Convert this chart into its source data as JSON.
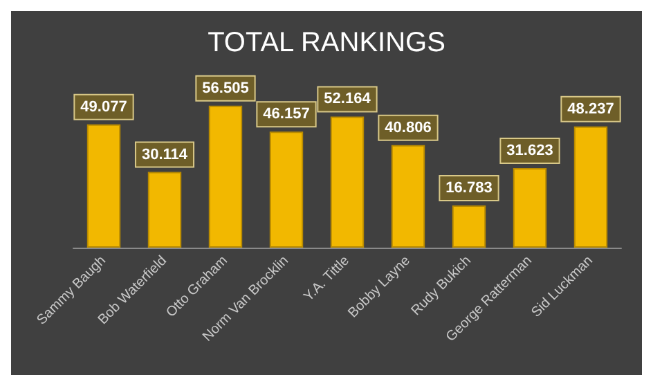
{
  "chart_data": {
    "type": "bar",
    "title": "TOTAL RANKINGS",
    "categories": [
      "Sammy Baugh",
      "Bob Waterfield",
      "Otto Graham",
      "Norm Van Brocklin",
      "Y.A. Tittle",
      "Bobby Layne",
      "Rudy Bukich",
      "George Ratterman",
      "Sid Luckman"
    ],
    "values": [
      49.077,
      30.114,
      56.505,
      46.157,
      52.164,
      40.806,
      16.783,
      31.623,
      48.237
    ],
    "color": "#f2b800",
    "data_labels": true,
    "grid": false
  }
}
